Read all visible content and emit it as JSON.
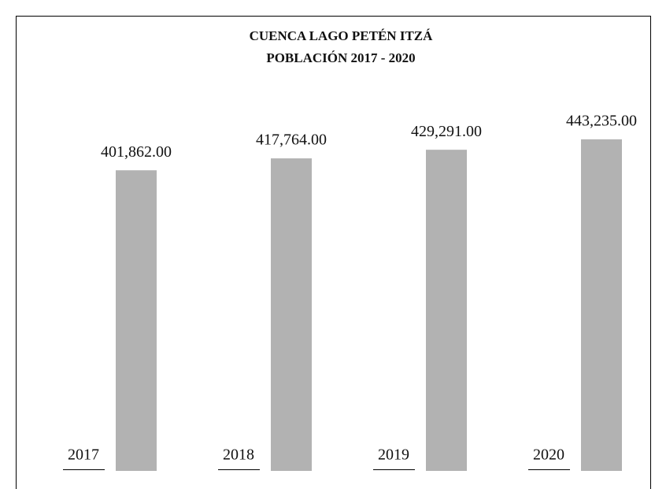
{
  "chart_data": {
    "type": "bar",
    "title": "CUENCA LAGO PETÉN ITZÁ",
    "subtitle": "POBLACIÓN 2017 - 2020",
    "categories": [
      "2017",
      "2018",
      "2019",
      "2020"
    ],
    "values": [
      401862,
      417764,
      429291,
      443235
    ],
    "value_labels": [
      "401,862.00",
      "417,764.00",
      "429,291.00",
      "443,235.00"
    ],
    "color": "#b2b2b2",
    "ylim": [
      0,
      500000
    ]
  }
}
